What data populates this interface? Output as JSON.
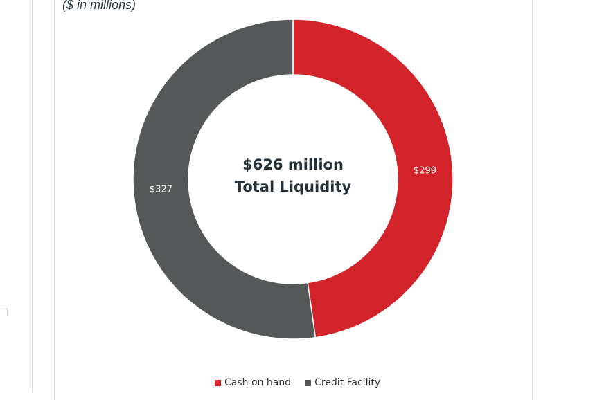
{
  "subtitle": "($ in millions)",
  "center": {
    "line1": "$626 million",
    "line2": "Total Liquidity"
  },
  "chart_data": {
    "type": "pie",
    "variant": "donut",
    "title": "",
    "categories": [
      "Cash on hand",
      "Credit Facility"
    ],
    "values": [
      299,
      327
    ],
    "data_labels": [
      "$299",
      "$327"
    ],
    "colors": [
      "#d2232a",
      "#545858"
    ],
    "start_angle_deg": 0,
    "direction": "clockwise",
    "legend_position": "bottom"
  }
}
